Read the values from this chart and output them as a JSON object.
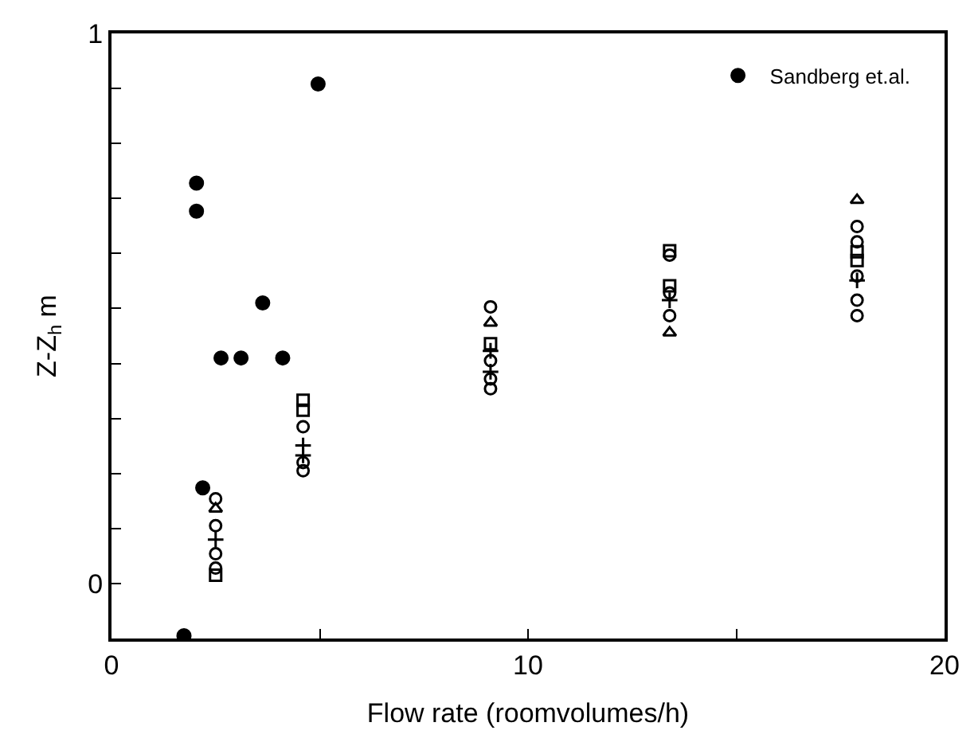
{
  "chart_data": {
    "type": "scatter",
    "xlabel": "Flow rate (roomvolumes/h)",
    "ylabel": "Z-Z$_{h}$ m",
    "xlim": [
      0,
      20
    ],
    "xticks": [
      0,
      {
        "value": 5,
        "label": null
      },
      10,
      {
        "value": 15,
        "label": null
      },
      20
    ],
    "ylim": [
      -0.1,
      1
    ],
    "yticks": [
      0,
      {
        "value": 0.1,
        "label": null
      },
      {
        "value": 0.2,
        "label": null
      },
      {
        "value": 0.3,
        "label": null
      },
      {
        "value": 0.4,
        "label": null
      },
      {
        "value": 0.5,
        "label": null
      },
      {
        "value": 0.6,
        "label": null
      },
      {
        "value": 0.7,
        "label": null
      },
      {
        "value": 0.8,
        "label": null
      },
      {
        "value": 0.9,
        "label": null
      },
      1
    ],
    "legend": "top right",
    "series": [
      {
        "name": "Sandberg et.al.",
        "color": "#000000",
        "marker": "circle",
        "x": [
          4.96,
          2.04,
          2.04,
          3.63,
          2.63,
          3.11,
          4.11,
          2.19,
          1.74
        ],
        "values": [
          0.908,
          0.728,
          0.677,
          0.51,
          0.41,
          0.41,
          0.41,
          0.174,
          -0.095
        ]
      },
      {
        "color": "#000000",
        "marker": "circle",
        "x": [
          2.5,
          2.5,
          2.5,
          2.5,
          4.6,
          4.6,
          4.6,
          9.1,
          9.1,
          9.1,
          9.1,
          13.4,
          13.4,
          13.4,
          17.9,
          17.9,
          17.9,
          17.9,
          17.9
        ],
        "values": [
          0.154,
          0.105,
          0.054,
          0.028,
          0.285,
          0.22,
          0.205,
          0.503,
          0.405,
          0.372,
          0.354,
          0.597,
          0.528,
          0.487,
          0.649,
          0.621,
          0.559,
          0.515,
          0.487
        ]
      },
      {
        "color": "#000000",
        "marker": "square",
        "x": [
          2.5,
          4.6,
          4.6,
          9.1,
          13.4,
          13.4,
          17.9,
          17.9
        ],
        "values": [
          0.015,
          0.333,
          0.315,
          0.436,
          0.605,
          0.541,
          0.603,
          0.587
        ]
      },
      {
        "color": "#000000",
        "marker": "triangle",
        "x": [
          2.5,
          9.1,
          13.4,
          17.9
        ],
        "values": [
          0.136,
          0.474,
          0.456,
          0.697
        ]
      },
      {
        "color": "#000000",
        "marker": "cross",
        "x": [
          2.5,
          4.6,
          4.6,
          9.1,
          9.1,
          13.4,
          17.9
        ],
        "values": [
          0.08,
          0.251,
          0.233,
          0.423,
          0.385,
          0.515,
          0.551
        ]
      }
    ]
  }
}
